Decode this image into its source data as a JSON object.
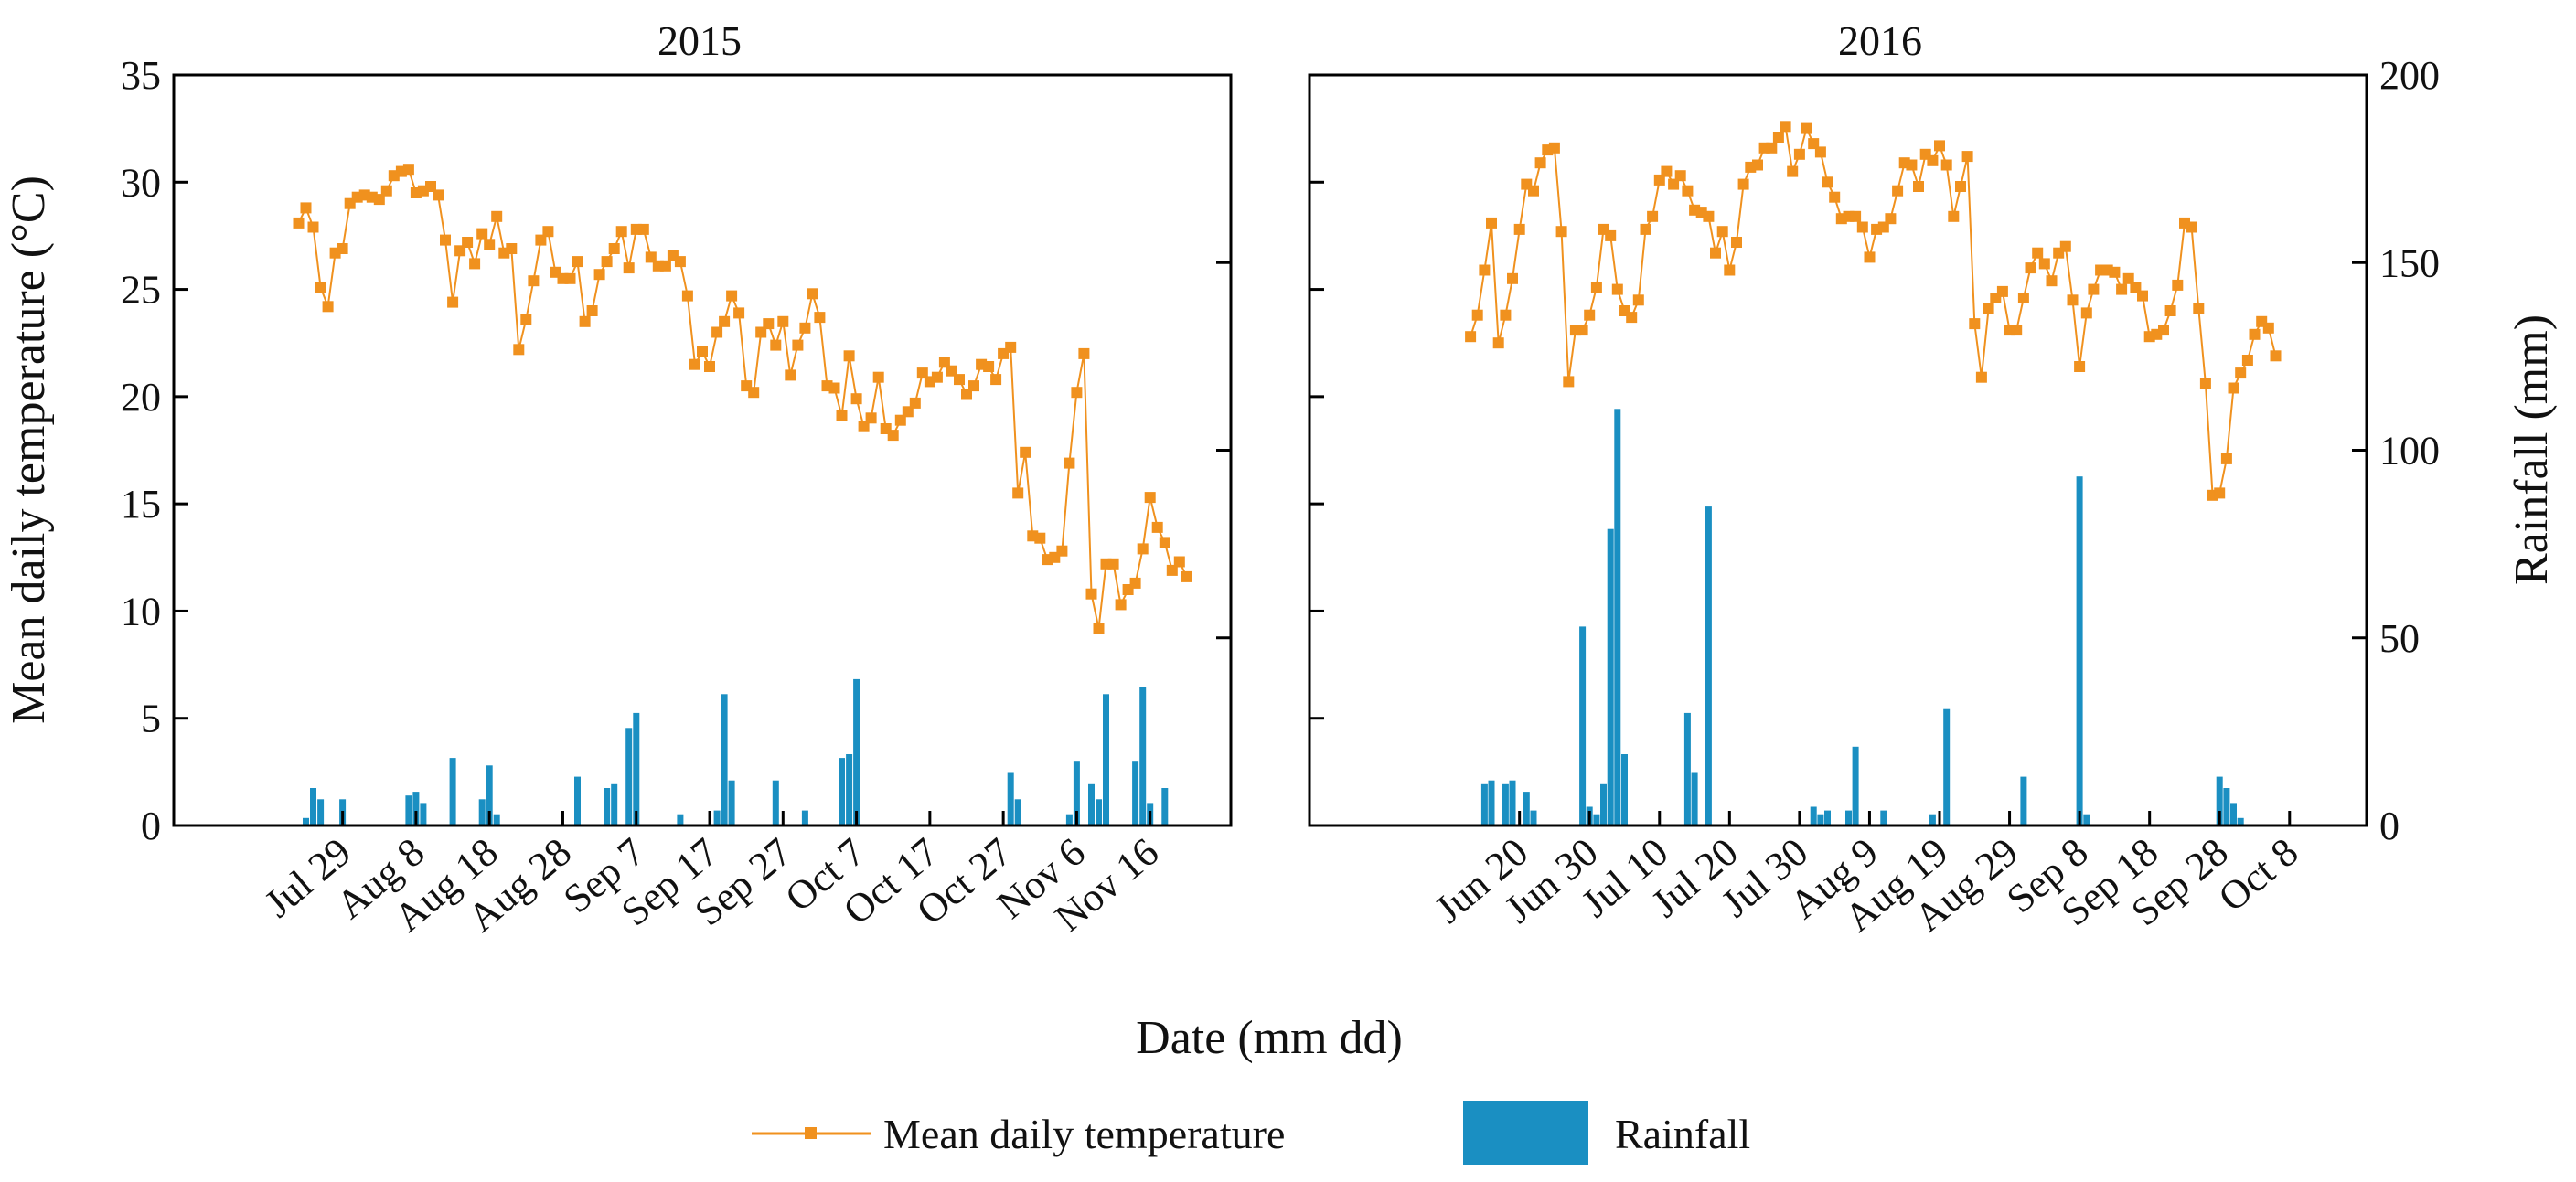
{
  "chart_data": [
    {
      "type": "line+bar",
      "title": "2015",
      "ylabel_left": "Mean daily temperature (°C)",
      "ylim_left": [
        0,
        35
      ],
      "yticks_left": [
        0,
        5,
        10,
        15,
        20,
        25,
        30,
        35
      ],
      "ylim_right": [
        0,
        200
      ],
      "xlim_day_offset": [
        -17,
        127
      ],
      "xtick_labels": [
        "Jul 29",
        "Aug 8",
        "Aug 18",
        "Aug 28",
        "Sep 7",
        "Sep 17",
        "Sep 27",
        "Oct 7",
        "Oct 17",
        "Oct 27",
        "Nov 6",
        "Nov 16"
      ],
      "xtick_dates": [
        "2015-07-29",
        "2015-08-08",
        "2015-08-18",
        "2015-08-28",
        "2015-09-07",
        "2015-09-17",
        "2015-09-27",
        "2015-10-07",
        "2015-10-17",
        "2015-10-27",
        "2015-11-06",
        "2015-11-16"
      ],
      "series": [
        {
          "name": "Mean daily temperature",
          "start_date": "2015-07-23",
          "color": "#f0911e",
          "values": [
            28.1,
            28.8,
            27.9,
            25.1,
            24.2,
            26.7,
            26.9,
            29.0,
            29.3,
            29.4,
            29.3,
            29.2,
            29.6,
            30.3,
            30.5,
            30.6,
            29.5,
            29.6,
            29.8,
            29.4,
            27.3,
            24.4,
            26.8,
            27.2,
            26.2,
            27.6,
            27.1,
            28.4,
            26.7,
            26.9,
            22.2,
            23.6,
            25.4,
            27.3,
            27.7,
            25.8,
            25.5,
            25.5,
            26.3,
            23.5,
            24.0,
            25.7,
            26.3,
            26.9,
            27.7,
            26.0,
            27.8,
            27.8,
            26.5,
            26.1,
            26.1,
            26.6,
            26.3,
            24.7,
            21.5,
            22.1,
            21.4,
            23.0,
            23.5,
            24.7,
            23.9,
            20.5,
            20.2,
            23.0,
            23.4,
            22.4,
            23.5,
            21.0,
            22.4,
            23.2,
            24.8,
            23.7,
            20.5,
            20.4,
            19.1,
            21.9,
            19.9,
            18.6,
            19.0,
            20.9,
            18.5,
            18.2,
            18.9,
            19.3,
            19.7,
            21.1,
            20.7,
            20.9,
            21.6,
            21.2,
            20.8,
            20.1,
            20.5,
            21.5,
            21.4,
            20.8,
            22.0,
            22.3,
            15.5,
            17.4,
            13.5,
            13.4,
            12.4,
            12.5,
            12.8,
            16.9,
            20.2,
            22.0,
            10.8,
            9.2,
            12.2,
            12.2,
            10.3,
            11.0,
            11.3,
            12.9,
            15.3,
            13.9,
            13.2,
            11.9,
            12.3,
            11.6
          ]
        },
        {
          "name": "Rainfall",
          "color": "#1a8fc2",
          "axis": "right",
          "bars": [
            {
              "date": "2015-07-24",
              "value": 2
            },
            {
              "date": "2015-07-25",
              "value": 10
            },
            {
              "date": "2015-07-26",
              "value": 7
            },
            {
              "date": "2015-07-29",
              "value": 7
            },
            {
              "date": "2015-08-07",
              "value": 8
            },
            {
              "date": "2015-08-08",
              "value": 9
            },
            {
              "date": "2015-08-09",
              "value": 6
            },
            {
              "date": "2015-08-13",
              "value": 18
            },
            {
              "date": "2015-08-17",
              "value": 7
            },
            {
              "date": "2015-08-18",
              "value": 16
            },
            {
              "date": "2015-08-19",
              "value": 3
            },
            {
              "date": "2015-08-30",
              "value": 13
            },
            {
              "date": "2015-09-03",
              "value": 10
            },
            {
              "date": "2015-09-04",
              "value": 11
            },
            {
              "date": "2015-09-06",
              "value": 26
            },
            {
              "date": "2015-09-07",
              "value": 30
            },
            {
              "date": "2015-09-13",
              "value": 3
            },
            {
              "date": "2015-09-18",
              "value": 4
            },
            {
              "date": "2015-09-19",
              "value": 35
            },
            {
              "date": "2015-09-20",
              "value": 12
            },
            {
              "date": "2015-09-26",
              "value": 12
            },
            {
              "date": "2015-09-30",
              "value": 4
            },
            {
              "date": "2015-10-05",
              "value": 18
            },
            {
              "date": "2015-10-06",
              "value": 19
            },
            {
              "date": "2015-10-07",
              "value": 39
            },
            {
              "date": "2015-10-28",
              "value": 14
            },
            {
              "date": "2015-10-29",
              "value": 7
            },
            {
              "date": "2015-11-05",
              "value": 3
            },
            {
              "date": "2015-11-06",
              "value": 17
            },
            {
              "date": "2015-11-08",
              "value": 11
            },
            {
              "date": "2015-11-09",
              "value": 7
            },
            {
              "date": "2015-11-10",
              "value": 35
            },
            {
              "date": "2015-11-14",
              "value": 17
            },
            {
              "date": "2015-11-15",
              "value": 37
            },
            {
              "date": "2015-11-16",
              "value": 6
            },
            {
              "date": "2015-11-18",
              "value": 10
            }
          ]
        }
      ]
    },
    {
      "type": "line+bar",
      "title": "2016",
      "ylabel_right": "Rainfall (mm)",
      "ylim_left": [
        0,
        35
      ],
      "ylim_right": [
        0,
        200
      ],
      "yticks_right": [
        0,
        50,
        100,
        150,
        200
      ],
      "xlim_day_offset": [
        -23,
        128
      ],
      "xtick_labels": [
        "Jun 20",
        "Jun 30",
        "Jul 10",
        "Jul 20",
        "Jul 30",
        "Aug 9",
        "Aug 19",
        "Aug 29",
        "Sep 8",
        "Sep 18",
        "Sep 28",
        "Oct 8"
      ],
      "xtick_dates": [
        "2016-06-20",
        "2016-06-30",
        "2016-07-10",
        "2016-07-20",
        "2016-07-30",
        "2016-08-09",
        "2016-08-19",
        "2016-08-29",
        "2016-09-08",
        "2016-09-18",
        "2016-09-28",
        "2016-10-08"
      ],
      "series": [
        {
          "name": "Mean daily temperature",
          "start_date": "2016-06-13",
          "color": "#f0911e",
          "values": [
            22.8,
            23.8,
            25.9,
            28.1,
            22.5,
            23.8,
            25.5,
            27.8,
            29.9,
            29.6,
            30.9,
            31.5,
            31.6,
            27.7,
            20.7,
            23.1,
            23.1,
            23.8,
            25.1,
            27.8,
            27.5,
            25.0,
            24.0,
            23.7,
            24.5,
            27.8,
            28.4,
            30.1,
            30.5,
            29.9,
            30.3,
            29.6,
            28.7,
            28.6,
            28.4,
            26.7,
            27.7,
            25.9,
            27.2,
            29.9,
            30.7,
            30.8,
            31.6,
            31.6,
            32.1,
            32.6,
            30.5,
            31.3,
            32.5,
            31.8,
            31.4,
            30.0,
            29.3,
            28.3,
            28.4,
            28.4,
            27.9,
            26.5,
            27.8,
            27.9,
            28.3,
            29.6,
            30.9,
            30.8,
            29.8,
            31.3,
            31.0,
            31.7,
            30.8,
            28.4,
            29.8,
            31.2,
            23.4,
            20.9,
            24.1,
            24.6,
            24.9,
            23.1,
            23.1,
            24.6,
            26.0,
            26.7,
            26.2,
            25.4,
            26.7,
            27.0,
            24.5,
            21.4,
            23.9,
            25.0,
            25.9,
            25.9,
            25.8,
            25.0,
            25.5,
            25.1,
            24.7,
            22.8,
            22.9,
            23.1,
            24.0,
            25.2,
            28.1,
            27.9,
            24.1,
            20.6,
            15.4,
            15.5,
            17.1,
            20.4,
            21.1,
            21.7,
            22.9,
            23.5,
            23.2,
            21.9
          ]
        },
        {
          "name": "Rainfall",
          "color": "#1a8fc2",
          "axis": "right",
          "bars": [
            {
              "date": "2016-06-15",
              "value": 11
            },
            {
              "date": "2016-06-16",
              "value": 12
            },
            {
              "date": "2016-06-18",
              "value": 11
            },
            {
              "date": "2016-06-19",
              "value": 12
            },
            {
              "date": "2016-06-21",
              "value": 9
            },
            {
              "date": "2016-06-22",
              "value": 4
            },
            {
              "date": "2016-06-29",
              "value": 53
            },
            {
              "date": "2016-06-30",
              "value": 5
            },
            {
              "date": "2016-07-01",
              "value": 3
            },
            {
              "date": "2016-07-02",
              "value": 11
            },
            {
              "date": "2016-07-03",
              "value": 79
            },
            {
              "date": "2016-07-04",
              "value": 111
            },
            {
              "date": "2016-07-05",
              "value": 19
            },
            {
              "date": "2016-07-14",
              "value": 30
            },
            {
              "date": "2016-07-15",
              "value": 14
            },
            {
              "date": "2016-07-17",
              "value": 85
            },
            {
              "date": "2016-08-01",
              "value": 5
            },
            {
              "date": "2016-08-02",
              "value": 3
            },
            {
              "date": "2016-08-03",
              "value": 4
            },
            {
              "date": "2016-08-06",
              "value": 4
            },
            {
              "date": "2016-08-07",
              "value": 21
            },
            {
              "date": "2016-08-11",
              "value": 4
            },
            {
              "date": "2016-08-18",
              "value": 3
            },
            {
              "date": "2016-08-20",
              "value": 31
            },
            {
              "date": "2016-08-31",
              "value": 13
            },
            {
              "date": "2016-09-08",
              "value": 93
            },
            {
              "date": "2016-09-09",
              "value": 3
            },
            {
              "date": "2016-09-28",
              "value": 13
            },
            {
              "date": "2016-09-29",
              "value": 10
            },
            {
              "date": "2016-09-30",
              "value": 6
            },
            {
              "date": "2016-10-01",
              "value": 2
            }
          ]
        }
      ]
    }
  ],
  "xlabel": "Date (mm dd)",
  "legend": {
    "position": "bottom",
    "items": [
      "Mean daily temperature",
      "Rainfall"
    ]
  }
}
